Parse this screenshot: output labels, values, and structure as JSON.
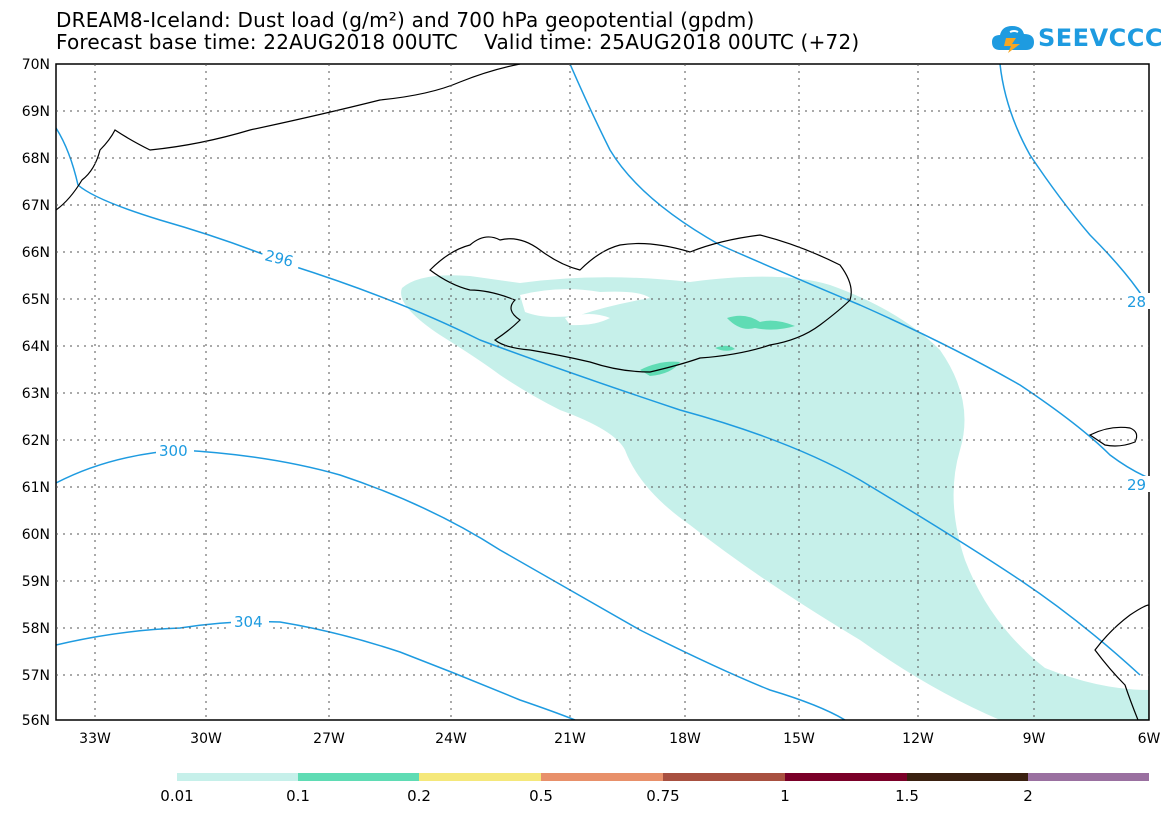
{
  "header": {
    "title_line1": "DREAM8-Iceland: Dust load (g/m²) and 700 hPa geopotential (gpdm)",
    "title_line2": "Forecast base time: 22AUG2018 00UTC    Valid time: 25AUG2018 00UTC (+72)"
  },
  "logo": {
    "text": "SEEVCCC",
    "icon": "cloud-logo-icon",
    "color": "#1e9be0"
  },
  "map": {
    "lat_labels": [
      "70N",
      "69N",
      "68N",
      "67N",
      "66N",
      "65N",
      "64N",
      "63N",
      "62N",
      "61N",
      "60N",
      "59N",
      "58N",
      "57N",
      "56N"
    ],
    "lon_labels": [
      "33W",
      "30W",
      "27W",
      "24W",
      "21W",
      "18W",
      "15W",
      "12W",
      "9W",
      "6W"
    ],
    "contour_labels": [
      "296",
      "300",
      "304",
      "28",
      "29"
    ],
    "contour_color": "#1e9be0",
    "dust_light_color": "#c6f0ea",
    "dust_medium_color": "#5fdcb4"
  },
  "legend": {
    "labels": [
      "0.01",
      "0.1",
      "0.2",
      "0.5",
      "0.75",
      "1",
      "1.5",
      "2"
    ],
    "colors": [
      "#c6f0ea",
      "#5fdcb4",
      "#f5e87a",
      "#e8906a",
      "#a85040",
      "#7a0028",
      "#3a2010",
      "#9a70a0"
    ]
  }
}
